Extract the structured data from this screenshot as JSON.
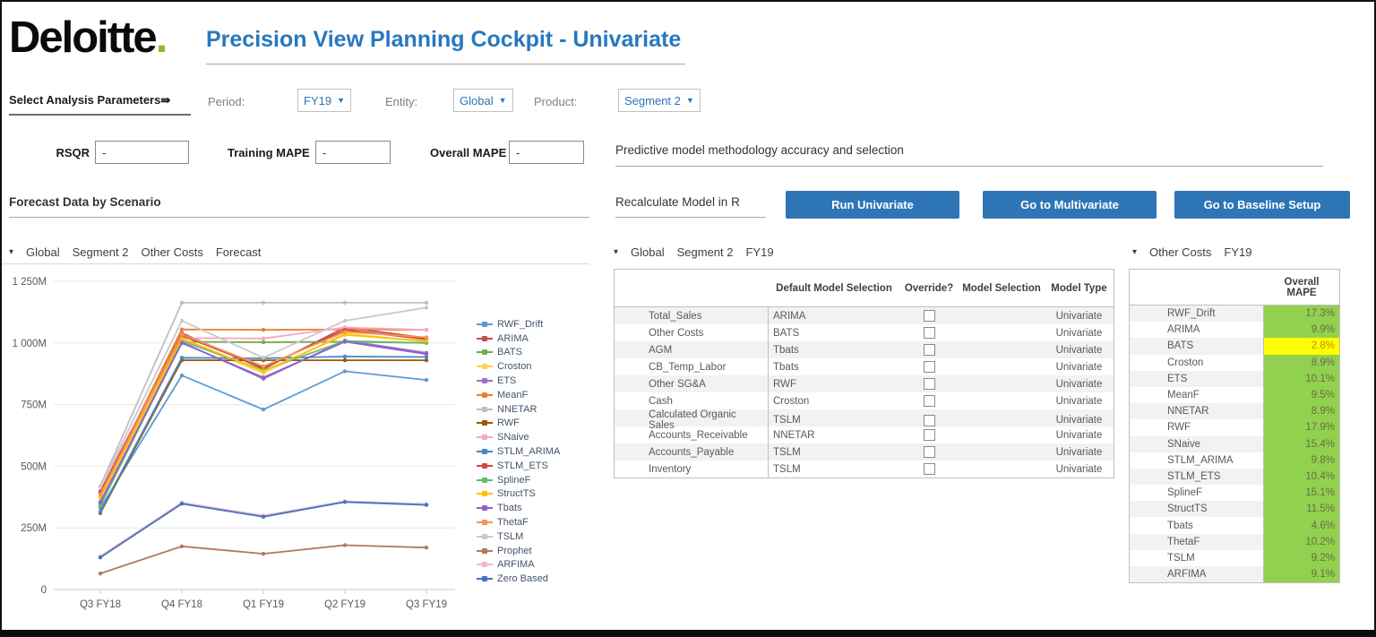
{
  "icons": {
    "dropdown_arrow": "▼",
    "crumb_arrow": "▾"
  },
  "colors": {
    "accent_blue": "#2E75B6",
    "title_blue": "#2878BE",
    "logo_green": "#86BC25",
    "mape_green": "#92D050",
    "mape_yellow": "#FFFF00"
  },
  "header": {
    "logo_text": "Deloitte",
    "logo_dot": ".",
    "title": "Precision View Planning Cockpit - Univariate"
  },
  "params": {
    "select_label": "Select Analysis Parameters⇛",
    "period_label": "Period:",
    "period_value": "FY19",
    "entity_label": "Entity:",
    "entity_value": "Global",
    "product_label": "Product:",
    "product_value": "Segment 2"
  },
  "metrics": {
    "rsqr_label": "RSQR",
    "rsqr_value": "-",
    "training_label": "Training MAPE",
    "training_value": "-",
    "overall_label": "Overall MAPE",
    "overall_value": "-"
  },
  "sections": {
    "forecast_title": "Forecast Data by Scenario",
    "predictive_title": "Predictive model methodology accuracy and selection",
    "recalc_label": "Recalculate Model in R"
  },
  "buttons": {
    "run_univariate": "Run Univariate",
    "go_multivariate": "Go to Multivariate",
    "go_baseline": "Go to Baseline Setup"
  },
  "chart_crumbs": [
    "Global",
    "Segment 2",
    "Other Costs",
    "Forecast"
  ],
  "chart_data": {
    "type": "line",
    "title": "Forecast Data by Scenario",
    "categories": [
      "Q3 FY18",
      "Q4 FY18",
      "Q1 FY19",
      "Q2 FY19",
      "Q3 FY19"
    ],
    "ylim": [
      0,
      1250
    ],
    "ytick_labels": [
      "0",
      "250M",
      "500M",
      "750M",
      "1 000M",
      "1 250M"
    ],
    "grid": true,
    "legend_position": "right",
    "unit": "millions",
    "series": [
      {
        "name": "RWF_Drift",
        "color": "#5b9bd5",
        "values": [
          330,
          868,
          730,
          885,
          850
        ]
      },
      {
        "name": "ARIMA",
        "color": "#c0504d",
        "values": [
          395,
          1040,
          895,
          1063,
          1020
        ]
      },
      {
        "name": "BATS",
        "color": "#70ad47",
        "values": [
          340,
          1005,
          1003,
          1005,
          1000
        ]
      },
      {
        "name": "Croston",
        "color": "#ffd34d",
        "values": [
          370,
          1015,
          878,
          1038,
          1005
        ]
      },
      {
        "name": "ETS",
        "color": "#9e6fc8",
        "values": [
          350,
          1003,
          855,
          1010,
          960
        ]
      },
      {
        "name": "MeanF",
        "color": "#ed7d31",
        "values": [
          390,
          1055,
          1053,
          1055,
          1053
        ]
      },
      {
        "name": "NNETAR",
        "color": "#bfbfbf",
        "values": [
          420,
          1163,
          1163,
          1163,
          1163
        ]
      },
      {
        "name": "RWF",
        "color": "#9c5700",
        "values": [
          310,
          930,
          930,
          930,
          930
        ]
      },
      {
        "name": "SNaive",
        "color": "#f7a8c4",
        "values": [
          418,
          1020,
          1018,
          1063,
          1053
        ]
      },
      {
        "name": "STLM_ARIMA",
        "color": "#4a86c8",
        "values": [
          315,
          940,
          938,
          945,
          943
        ]
      },
      {
        "name": "STLM_ETS",
        "color": "#d04a3a",
        "values": [
          398,
          1030,
          900,
          1053,
          1015
        ]
      },
      {
        "name": "SplineF",
        "color": "#66bb6a",
        "values": [
          345,
          1008,
          890,
          1008,
          1000
        ]
      },
      {
        "name": "StructTS",
        "color": "#ffc000",
        "values": [
          375,
          1018,
          885,
          1033,
          1008
        ]
      },
      {
        "name": "Tbats",
        "color": "#8f5fd0",
        "values": [
          355,
          1000,
          860,
          1005,
          955
        ]
      },
      {
        "name": "ThetaF",
        "color": "#f0965a",
        "values": [
          385,
          1035,
          905,
          1045,
          1023
        ]
      },
      {
        "name": "TSLM",
        "color": "#c9c9c9",
        "values": [
          415,
          1090,
          940,
          1090,
          1143
        ]
      },
      {
        "name": "Prophet",
        "color": "#b3795a",
        "values": [
          65,
          175,
          145,
          180,
          170
        ]
      },
      {
        "name": "ARFIMA",
        "color": "#f4b8d0",
        "values": [
          135,
          352,
          300,
          358,
          347
        ]
      },
      {
        "name": "Zero Based",
        "color": "#4472c4",
        "values": [
          130,
          348,
          295,
          355,
          343
        ]
      }
    ]
  },
  "model_table": {
    "crumbs": [
      "Global",
      "Segment 2",
      "FY19"
    ],
    "headers": [
      "",
      "Default Model Selection",
      "Override?",
      "Model Selection",
      "Model Type"
    ],
    "rows": [
      {
        "name": "Total_Sales",
        "default_model": "ARIMA",
        "override": false,
        "model_selection": "",
        "model_type": "Univariate"
      },
      {
        "name": "Other Costs",
        "default_model": "BATS",
        "override": false,
        "model_selection": "",
        "model_type": "Univariate"
      },
      {
        "name": "AGM",
        "default_model": "Tbats",
        "override": false,
        "model_selection": "",
        "model_type": "Univariate"
      },
      {
        "name": "CB_Temp_Labor",
        "default_model": "Tbats",
        "override": false,
        "model_selection": "",
        "model_type": "Univariate"
      },
      {
        "name": "Other SG&A",
        "default_model": "RWF",
        "override": false,
        "model_selection": "",
        "model_type": "Univariate"
      },
      {
        "name": "Cash",
        "default_model": "Croston",
        "override": false,
        "model_selection": "",
        "model_type": "Univariate"
      },
      {
        "name": "Calculated Organic Sales",
        "default_model": "TSLM",
        "override": false,
        "model_selection": "",
        "model_type": "Univariate"
      },
      {
        "name": "Accounts_Receivable",
        "default_model": "NNETAR",
        "override": false,
        "model_selection": "",
        "model_type": "Univariate"
      },
      {
        "name": "Accounts_Payable",
        "default_model": "TSLM",
        "override": false,
        "model_selection": "",
        "model_type": "Univariate"
      },
      {
        "name": "Inventory",
        "default_model": "TSLM",
        "override": false,
        "model_selection": "",
        "model_type": "Univariate"
      }
    ]
  },
  "mape_table": {
    "crumbs": [
      "Other Costs",
      "FY19"
    ],
    "header": "Overall MAPE",
    "rows": [
      {
        "name": "RWF_Drift",
        "value": "17.3%",
        "highlight": "green"
      },
      {
        "name": "ARIMA",
        "value": "9.9%",
        "highlight": "green"
      },
      {
        "name": "BATS",
        "value": "2.8%",
        "highlight": "yellow"
      },
      {
        "name": "Croston",
        "value": "8.9%",
        "highlight": "green"
      },
      {
        "name": "ETS",
        "value": "10.1%",
        "highlight": "green"
      },
      {
        "name": "MeanF",
        "value": "9.5%",
        "highlight": "green"
      },
      {
        "name": "NNETAR",
        "value": "8.9%",
        "highlight": "green"
      },
      {
        "name": "RWF",
        "value": "17.9%",
        "highlight": "green"
      },
      {
        "name": "SNaive",
        "value": "15.4%",
        "highlight": "green"
      },
      {
        "name": "STLM_ARIMA",
        "value": "9.8%",
        "highlight": "green"
      },
      {
        "name": "STLM_ETS",
        "value": "10.4%",
        "highlight": "green"
      },
      {
        "name": "SplineF",
        "value": "15.1%",
        "highlight": "green"
      },
      {
        "name": "StructTS",
        "value": "11.5%",
        "highlight": "green"
      },
      {
        "name": "Tbats",
        "value": "4.6%",
        "highlight": "green"
      },
      {
        "name": "ThetaF",
        "value": "10.2%",
        "highlight": "green"
      },
      {
        "name": "TSLM",
        "value": "9.2%",
        "highlight": "green"
      },
      {
        "name": "ARFIMA",
        "value": "9.1%",
        "highlight": "green"
      }
    ]
  }
}
